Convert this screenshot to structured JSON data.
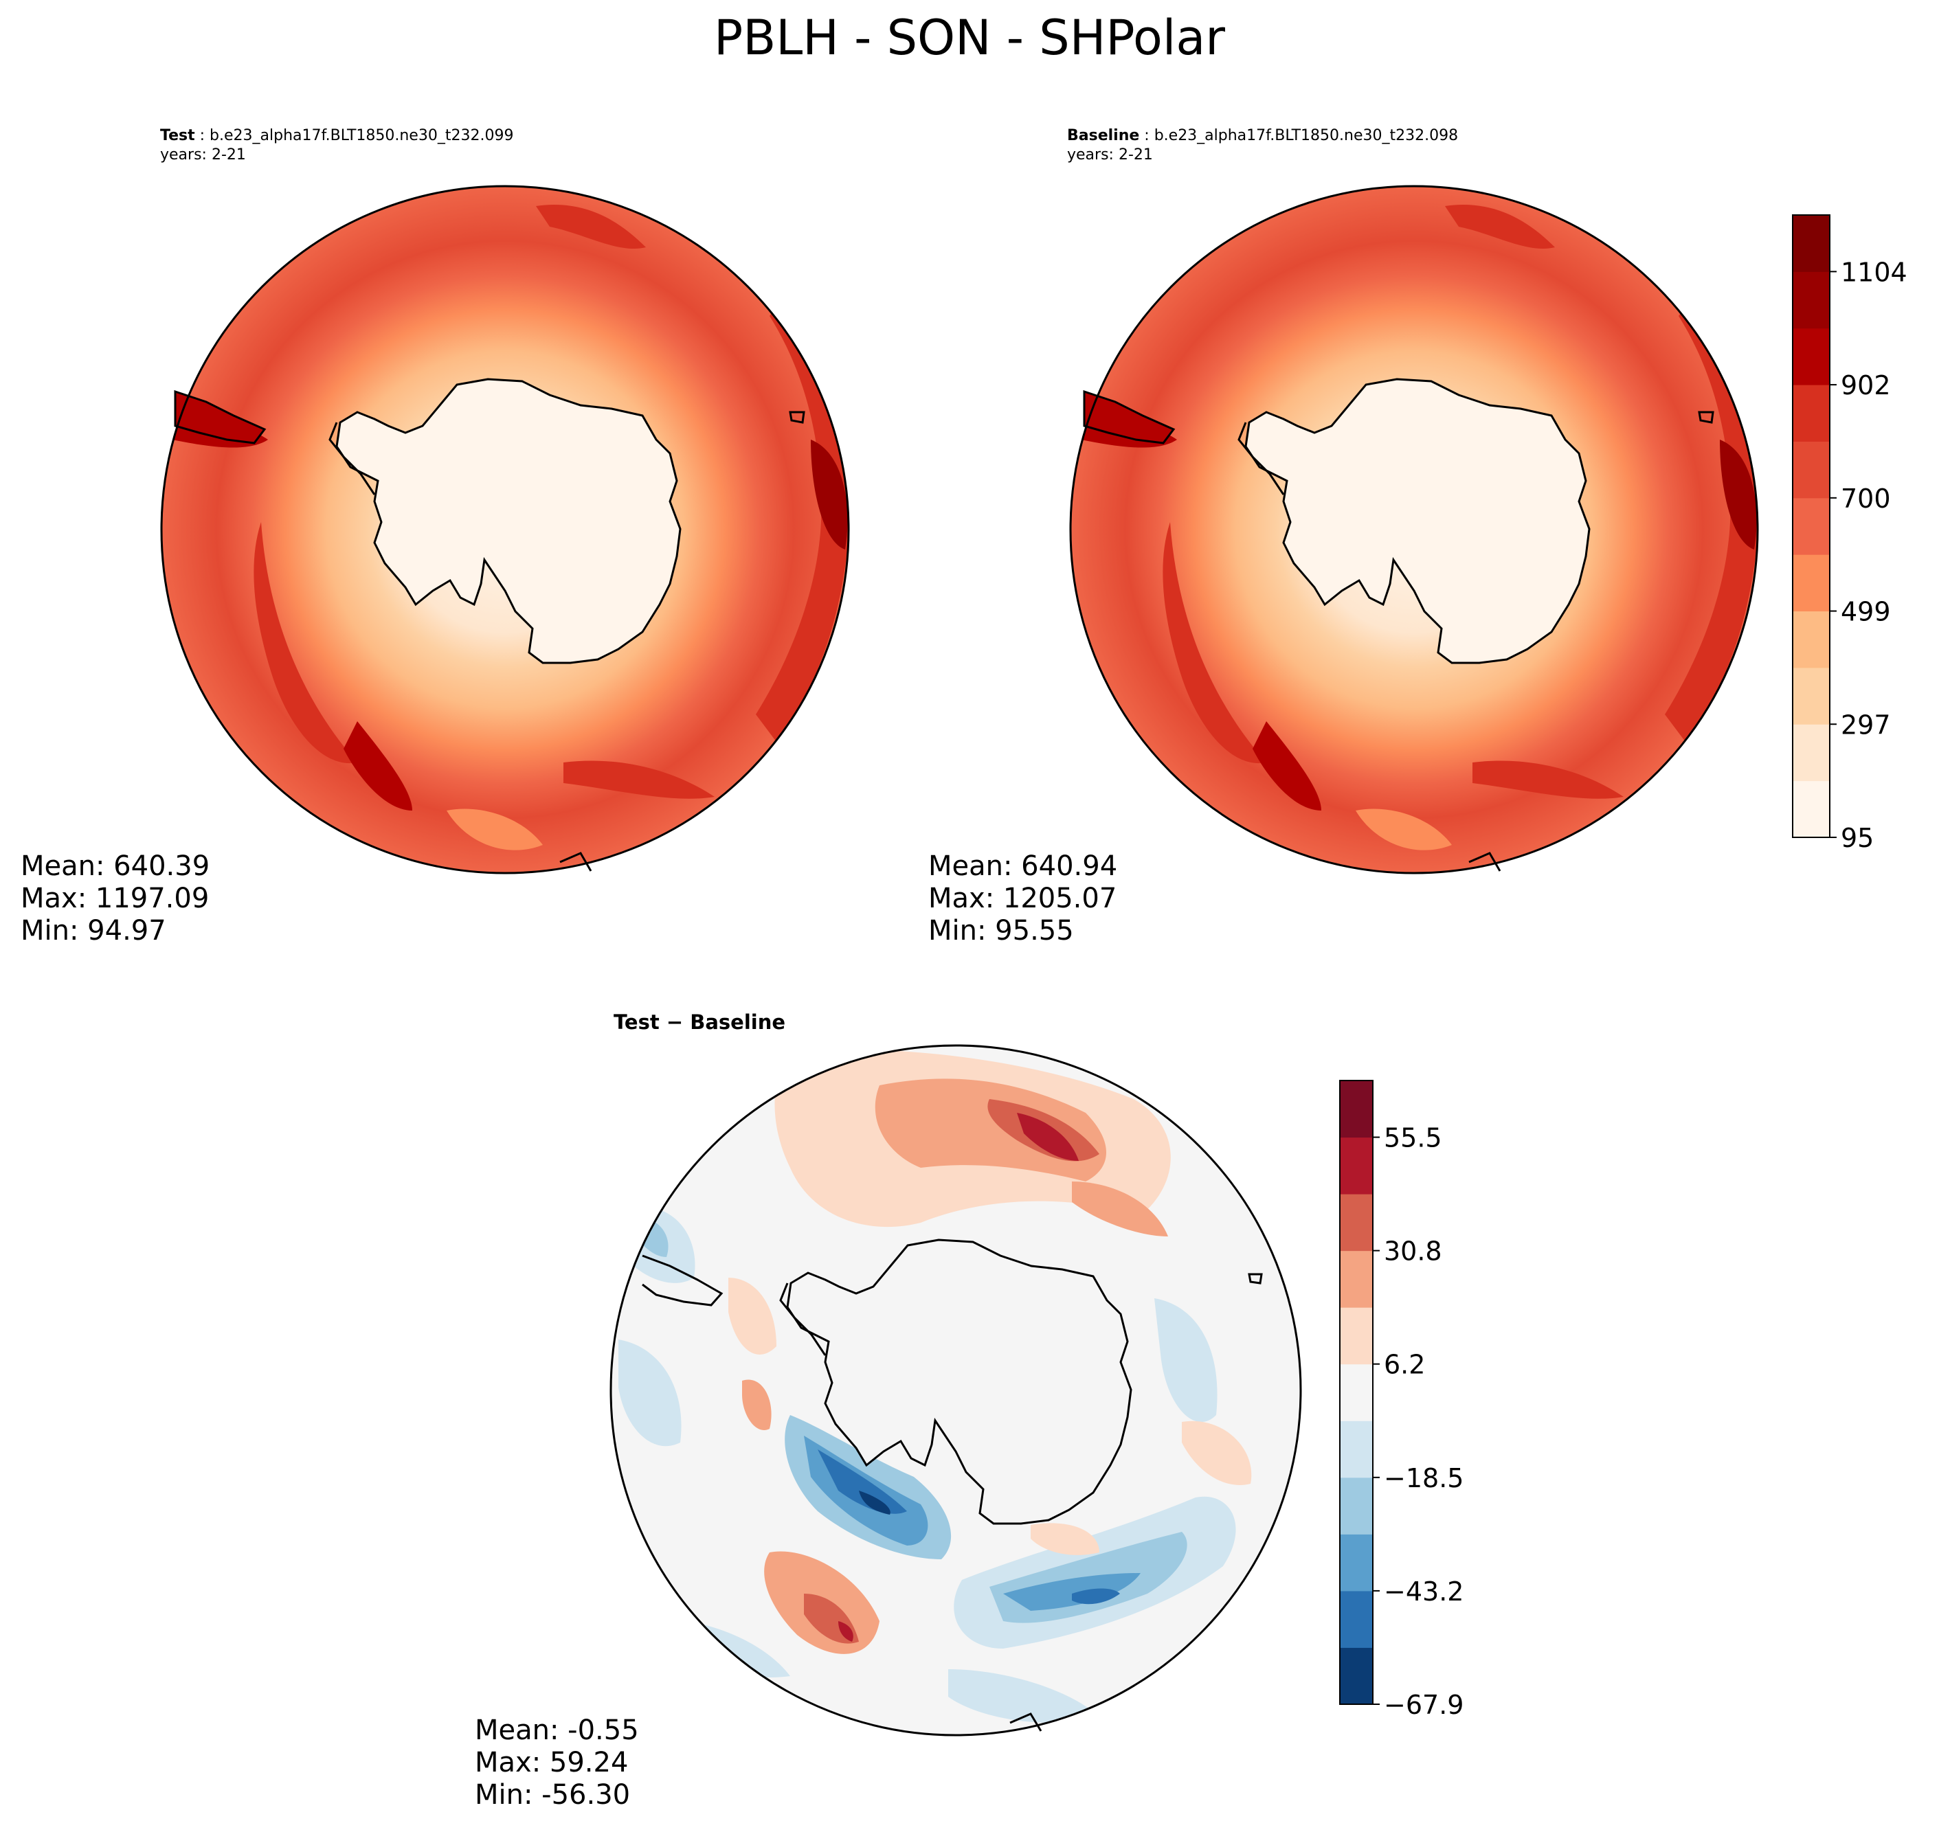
{
  "figure": {
    "title": "PBLH - SON - SHPolar"
  },
  "panels": {
    "test": {
      "label": "Test",
      "case": " : b.e23_alpha17f.BLT1850.ne30_t232.099",
      "years": "years: 2-21",
      "stats": {
        "mean": "Mean: 640.39",
        "max": "Max: 1197.09",
        "min": "Min: 94.97"
      }
    },
    "baseline": {
      "label": "Baseline",
      "case": " : b.e23_alpha17f.BLT1850.ne30_t232.098",
      "years": "years: 2-21",
      "stats": {
        "mean": "Mean: 640.94",
        "max": "Max: 1205.07",
        "min": "Min: 95.55"
      }
    },
    "diff": {
      "title": "Test − Baseline",
      "stats": {
        "mean": "Mean: -0.55",
        "max": "Max: 59.24",
        "min": "Min: -56.30"
      }
    }
  },
  "chart_data": [
    {
      "type": "heatmap",
      "panel": "Test",
      "projection": "South Polar Stereographic",
      "variable": "PBLH",
      "season": "SON",
      "mean": 640.39,
      "max": 1197.09,
      "min": 94.97
    },
    {
      "type": "heatmap",
      "panel": "Baseline",
      "projection": "South Polar Stereographic",
      "variable": "PBLH",
      "season": "SON",
      "mean": 640.94,
      "max": 1205.07,
      "min": 95.55
    },
    {
      "type": "heatmap",
      "panel": "Test − Baseline",
      "projection": "South Polar Stereographic",
      "variable": "PBLH",
      "season": "SON",
      "mean": -0.55,
      "max": 59.24,
      "min": -56.3
    }
  ],
  "colorbars": {
    "main": {
      "ticks": [
        "95",
        "297",
        "499",
        "700",
        "902",
        "1104"
      ],
      "colors": [
        "#fff5eb",
        "#fee6ce",
        "#fdd0a2",
        "#fdbb84",
        "#fc8d59",
        "#ef6548",
        "#e34a33",
        "#d7301f",
        "#b30000",
        "#990000",
        "#7f0000"
      ]
    },
    "diff": {
      "ticks": [
        "−67.9",
        "−43.2",
        "−18.5",
        "6.2",
        "30.8",
        "55.5"
      ],
      "colors": [
        "#0b3c74",
        "#2a71b2",
        "#5a9fcd",
        "#9ecae1",
        "#d1e5f0",
        "#f5f5f5",
        "#fcdbc7",
        "#f4a482",
        "#d6604d",
        "#b1182b",
        "#7b0c24"
      ]
    }
  }
}
